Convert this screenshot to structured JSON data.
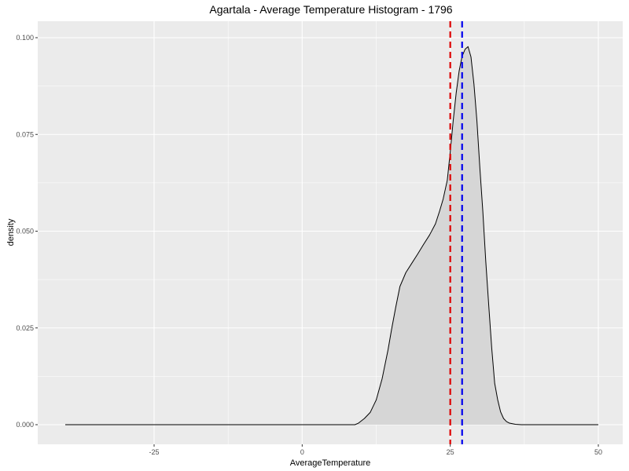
{
  "chart_data": {
    "type": "area",
    "title": "Agartala - Average Temperature Histogram - 1796",
    "xlabel": "AverageTemperature",
    "ylabel": "density",
    "xlim": [
      -40,
      50
    ],
    "ylim": [
      0,
      0.1
    ],
    "x_ticks": [
      -25,
      0,
      25,
      50
    ],
    "x_tick_labels": [
      "-25",
      "0",
      "25",
      "50"
    ],
    "y_ticks": [
      0,
      0.025,
      0.05,
      0.075,
      0.1
    ],
    "y_tick_labels": [
      "0.000",
      "0.025",
      "0.050",
      "0.075",
      "0.100"
    ],
    "grid": true,
    "series": [
      {
        "x": [
          -40,
          8.9,
          9.5,
          10.5,
          11.5,
          12.5,
          13.5,
          14.5,
          15.1,
          15.8,
          16.5,
          17.5,
          18.5,
          19.5,
          20.5,
          21.5,
          22.5,
          23.2,
          23.8,
          24.5,
          25.0,
          25.5,
          26.0,
          26.5,
          27.0,
          27.5,
          28.0,
          28.5,
          29.0,
          29.5,
          30.0,
          30.5,
          31.0,
          31.5,
          32.0,
          32.5,
          33.0,
          33.5,
          34.0,
          34.5,
          35.0,
          36.0,
          37.0,
          38.0,
          40.0,
          50.0
        ],
        "y": [
          0,
          0.0,
          0.0004,
          0.0016,
          0.0032,
          0.0064,
          0.0119,
          0.0194,
          0.0247,
          0.0304,
          0.0357,
          0.0393,
          0.0417,
          0.0441,
          0.0466,
          0.049,
          0.0519,
          0.0552,
          0.0583,
          0.0632,
          0.0705,
          0.0786,
          0.0857,
          0.0914,
          0.0952,
          0.097,
          0.0977,
          0.095,
          0.088,
          0.0785,
          0.0663,
          0.0551,
          0.0421,
          0.0308,
          0.0198,
          0.0107,
          0.0065,
          0.0033,
          0.0016,
          0.0008,
          0.0004,
          0.0001,
          0.0,
          0.0,
          0.0,
          0.0
        ]
      }
    ],
    "vlines": [
      {
        "x": 25.0,
        "color": "#dd0000",
        "style": "dashed"
      },
      {
        "x": 27.0,
        "color": "#0000ee",
        "style": "dashed"
      }
    ],
    "colors": {
      "panel_background": "#ebebeb",
      "grid_major": "#ffffff",
      "density_fill": "#d6d6d6",
      "density_line": "#000000"
    }
  }
}
